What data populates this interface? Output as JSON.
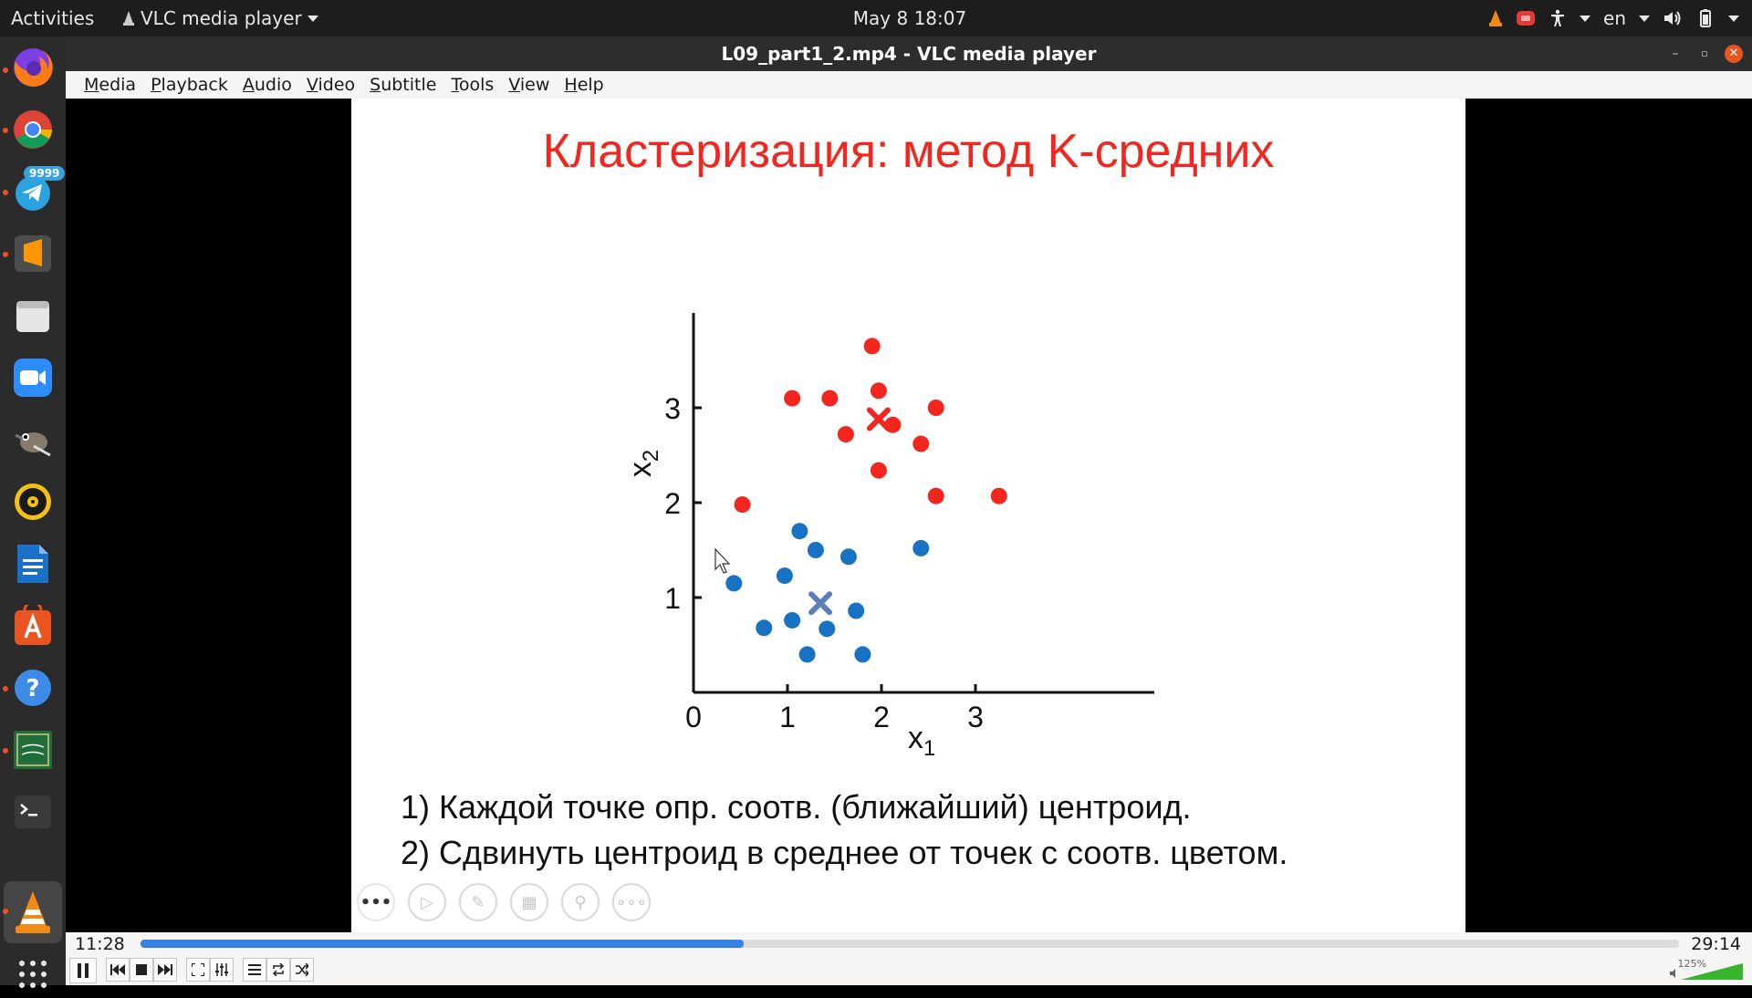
{
  "topbar": {
    "activities": "Activities",
    "app_name": "VLC media player",
    "datetime": "May 8  18:07",
    "language": "en"
  },
  "window": {
    "title": "L09_part1_2.mp4 - VLC media player"
  },
  "menu": [
    "Media",
    "Playback",
    "Audio",
    "Video",
    "Subtitle",
    "Tools",
    "View",
    "Help"
  ],
  "dock": {
    "apps": [
      "firefox-icon",
      "chrome-icon",
      "telegram-icon",
      "sublime-text-icon",
      "files-icon",
      "zoom-icon",
      "gimp-icon",
      "rhythmbox-icon",
      "writer-icon",
      "software-center-icon",
      "help-icon",
      "app-icon",
      "terminal-icon",
      "vlc-icon"
    ],
    "telegram_badge": "9999"
  },
  "slide": {
    "title": "Кластеризация: метод K-средних",
    "step1": "1) Каждой точке опр. соотв. (ближайший) центроид.",
    "step2": "2) Сдвинуть центроид в среднее от точек с соотв. цветом."
  },
  "chart_data": {
    "type": "scatter",
    "xlabel": "x1",
    "ylabel": "x2",
    "xlim": [
      0,
      4.1
    ],
    "ylim": [
      0,
      4.0
    ],
    "x_ticks": [
      "0",
      "1",
      "2",
      "3"
    ],
    "y_ticks": [
      "1",
      "2",
      "3"
    ],
    "colors": {
      "red": "#f2261f",
      "blue": "#1872c4",
      "blue_centroid": "#5b7fb8"
    },
    "series": [
      {
        "color": "red",
        "points": [
          [
            1.05,
            3.1
          ],
          [
            1.45,
            3.1
          ],
          [
            1.9,
            3.65
          ],
          [
            1.97,
            3.18
          ],
          [
            1.62,
            2.72
          ],
          [
            2.12,
            2.82
          ],
          [
            2.58,
            3.0
          ],
          [
            2.42,
            2.62
          ],
          [
            1.97,
            2.34
          ],
          [
            2.58,
            2.07
          ],
          [
            3.25,
            2.07
          ],
          [
            0.52,
            1.98
          ]
        ]
      },
      {
        "color": "blue",
        "points": [
          [
            1.13,
            1.7
          ],
          [
            1.3,
            1.5
          ],
          [
            1.65,
            1.43
          ],
          [
            2.42,
            1.52
          ],
          [
            0.97,
            1.23
          ],
          [
            0.43,
            1.15
          ],
          [
            1.05,
            0.76
          ],
          [
            0.75,
            0.68
          ],
          [
            1.42,
            0.67
          ],
          [
            1.73,
            0.86
          ],
          [
            1.21,
            0.4
          ],
          [
            1.8,
            0.4
          ]
        ]
      }
    ],
    "centroids": [
      {
        "color": "red",
        "x": 1.97,
        "y": 2.88
      },
      {
        "color": "blue",
        "x": 1.35,
        "y": 0.94
      }
    ]
  },
  "controls": {
    "elapsed": "11:28",
    "total": "29:14",
    "progress": 0.392,
    "volume": "125%"
  }
}
